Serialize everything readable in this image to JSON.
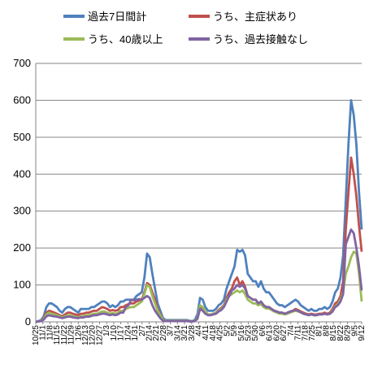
{
  "chart_data": {
    "type": "line",
    "ylim": [
      0,
      700
    ],
    "yticks": [
      "0",
      "100",
      "200",
      "300",
      "400",
      "500",
      "600",
      "700"
    ],
    "x_tick_labels": [
      "10/25",
      "11/1",
      "11/8",
      "11/15",
      "11/22",
      "11/29",
      "12/6",
      "12/13",
      "12/20",
      "12/27",
      "1/3",
      "1/10",
      "1/17",
      "1/24",
      "1/31",
      "2/7",
      "2/14",
      "2/21",
      "2/28",
      "3/7",
      "3/14",
      "3/21",
      "3/28",
      "4/4",
      "4/11",
      "4/18",
      "4/25",
      "5/2",
      "5/9",
      "5/16",
      "5/23",
      "5/30",
      "6/6",
      "6/13",
      "6/20",
      "6/27",
      "7/4",
      "7/11",
      "7/18",
      "7/25",
      "8/1",
      "8/8",
      "8/15",
      "8/22",
      "8/29",
      "9/5",
      "9/12"
    ],
    "grid": "horizontal",
    "legend_position": "top",
    "series": [
      {
        "name": "過去7日間計",
        "color": "#4f81bd",
        "values": [
          0,
          2,
          5,
          15,
          40,
          50,
          50,
          45,
          40,
          30,
          25,
          35,
          40,
          40,
          35,
          30,
          25,
          35,
          35,
          35,
          35,
          40,
          40,
          45,
          50,
          55,
          55,
          50,
          40,
          45,
          40,
          45,
          55,
          55,
          60,
          60,
          60,
          60,
          70,
          75,
          80,
          120,
          185,
          175,
          130,
          90,
          50,
          30,
          10,
          5,
          5,
          5,
          5,
          5,
          5,
          5,
          5,
          5,
          3,
          2,
          5,
          20,
          65,
          60,
          40,
          30,
          30,
          30,
          35,
          45,
          50,
          60,
          90,
          110,
          130,
          150,
          195,
          190,
          195,
          180,
          130,
          120,
          110,
          110,
          95,
          110,
          90,
          80,
          80,
          70,
          60,
          50,
          45,
          45,
          40,
          45,
          50,
          55,
          60,
          55,
          45,
          40,
          35,
          30,
          35,
          30,
          30,
          35,
          35,
          40,
          35,
          40,
          55,
          80,
          90,
          120,
          180,
          330,
          480,
          600,
          560,
          480,
          350,
          250
        ]
      },
      {
        "name": "うち、主症状あり",
        "color": "#c0504d",
        "values": [
          0,
          1,
          3,
          10,
          25,
          30,
          28,
          25,
          22,
          18,
          15,
          20,
          25,
          25,
          22,
          20,
          18,
          22,
          22,
          25,
          25,
          28,
          30,
          30,
          35,
          40,
          38,
          35,
          30,
          32,
          30,
          32,
          40,
          40,
          45,
          48,
          50,
          50,
          55,
          58,
          60,
          80,
          105,
          100,
          80,
          60,
          35,
          20,
          5,
          3,
          3,
          3,
          3,
          3,
          3,
          3,
          3,
          3,
          2,
          1,
          3,
          10,
          40,
          38,
          28,
          20,
          20,
          22,
          25,
          32,
          38,
          45,
          65,
          80,
          90,
          110,
          120,
          100,
          110,
          95,
          70,
          65,
          60,
          60,
          50,
          55,
          45,
          40,
          40,
          35,
          30,
          28,
          25,
          25,
          22,
          25,
          28,
          30,
          35,
          32,
          28,
          25,
          22,
          20,
          22,
          20,
          20,
          22,
          22,
          25,
          22,
          25,
          35,
          50,
          55,
          70,
          110,
          250,
          350,
          445,
          400,
          340,
          260,
          190
        ]
      },
      {
        "name": "うち、40歳以上",
        "color": "#9bbb59",
        "values": [
          0,
          1,
          3,
          8,
          20,
          25,
          22,
          20,
          18,
          15,
          12,
          15,
          18,
          18,
          15,
          14,
          12,
          15,
          15,
          18,
          18,
          20,
          22,
          22,
          25,
          28,
          28,
          25,
          22,
          24,
          22,
          24,
          30,
          30,
          35,
          38,
          40,
          40,
          45,
          50,
          55,
          75,
          100,
          95,
          70,
          50,
          30,
          18,
          5,
          3,
          3,
          3,
          3,
          3,
          3,
          3,
          3,
          3,
          2,
          1,
          3,
          10,
          45,
          40,
          28,
          20,
          20,
          22,
          25,
          30,
          35,
          42,
          60,
          70,
          75,
          80,
          85,
          80,
          85,
          75,
          60,
          55,
          50,
          50,
          45,
          48,
          40,
          36,
          36,
          32,
          28,
          25,
          22,
          22,
          20,
          22,
          25,
          28,
          30,
          28,
          25,
          22,
          20,
          18,
          20,
          18,
          18,
          20,
          20,
          22,
          20,
          22,
          30,
          42,
          48,
          60,
          80,
          130,
          150,
          175,
          190,
          185,
          130,
          55
        ]
      },
      {
        "name": "うち、過去接触なし",
        "color": "#8064a2",
        "values": [
          0,
          1,
          2,
          6,
          15,
          18,
          16,
          15,
          14,
          12,
          10,
          12,
          14,
          14,
          12,
          11,
          10,
          12,
          12,
          14,
          14,
          16,
          18,
          18,
          20,
          22,
          22,
          20,
          18,
          20,
          18,
          20,
          25,
          25,
          40,
          45,
          60,
          58,
          60,
          62,
          60,
          65,
          70,
          65,
          45,
          30,
          20,
          10,
          3,
          2,
          2,
          2,
          2,
          2,
          2,
          2,
          2,
          2,
          1,
          1,
          2,
          8,
          35,
          30,
          22,
          18,
          18,
          20,
          22,
          28,
          32,
          40,
          55,
          70,
          85,
          90,
          100,
          95,
          100,
          90,
          70,
          65,
          60,
          60,
          50,
          55,
          45,
          40,
          40,
          35,
          30,
          28,
          25,
          25,
          22,
          25,
          28,
          30,
          32,
          30,
          26,
          22,
          20,
          18,
          20,
          18,
          18,
          20,
          20,
          22,
          20,
          22,
          28,
          40,
          45,
          55,
          75,
          210,
          230,
          250,
          240,
          200,
          150,
          85
        ]
      }
    ]
  }
}
